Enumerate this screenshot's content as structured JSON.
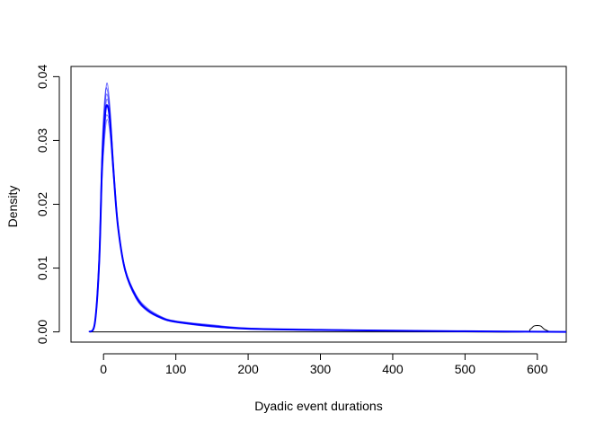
{
  "chart_data": {
    "type": "line",
    "title": "",
    "xlabel": "Dyadic event durations",
    "ylabel": "Density",
    "xlim": [
      -45,
      640
    ],
    "ylim": [
      -0.0016,
      0.0416
    ],
    "xticks": [
      0,
      100,
      200,
      300,
      400,
      500,
      600
    ],
    "yticks": [
      0.0,
      0.01,
      0.02,
      0.03,
      0.04
    ],
    "ytick_labels": [
      "0.00",
      "0.01",
      "0.02",
      "0.03",
      "0.04"
    ],
    "grid": false,
    "legend": "none",
    "colors": {
      "observed": "#000000",
      "simulated": "#0000ff",
      "axes": "#000000"
    },
    "series": [
      {
        "color": "#000000",
        "style": "thin",
        "x": [
          -20,
          -10,
          -5,
          0,
          3,
          8,
          15,
          25,
          40,
          60,
          80,
          100,
          150,
          200,
          300,
          400,
          500,
          580,
          590,
          595,
          600,
          605,
          610,
          620,
          640
        ],
        "y": [
          0.0,
          0.0,
          0.0,
          0.0,
          0.0,
          0.0,
          0.0,
          0.0,
          0.0,
          0.0,
          0.0,
          0.0,
          0.0,
          0.0,
          0.0,
          0.0,
          0.0,
          0.0,
          0.0004,
          0.0009,
          0.001,
          0.0009,
          0.0004,
          0.0,
          0.0
        ]
      },
      {
        "color": "#0000ff",
        "style": "thin",
        "x": [
          -20,
          -12,
          -6,
          -2,
          2,
          5,
          9,
          14,
          20,
          30,
          45,
          60,
          80,
          100,
          150,
          200,
          300,
          400,
          500,
          640
        ],
        "y": [
          0.0,
          0.0015,
          0.012,
          0.028,
          0.036,
          0.039,
          0.035,
          0.026,
          0.017,
          0.0098,
          0.0055,
          0.0035,
          0.0022,
          0.0016,
          0.0009,
          0.0005,
          0.0003,
          0.0002,
          0.0001,
          0.0
        ]
      },
      {
        "color": "#0000ff",
        "style": "thin",
        "x": [
          -20,
          -12,
          -6,
          -2,
          2,
          5,
          9,
          14,
          20,
          30,
          45,
          60,
          80,
          100,
          150,
          200,
          300,
          400,
          500,
          640
        ],
        "y": [
          0.0,
          0.0014,
          0.011,
          0.026,
          0.034,
          0.0365,
          0.0335,
          0.025,
          0.0165,
          0.0095,
          0.0053,
          0.0034,
          0.0021,
          0.0015,
          0.0009,
          0.0005,
          0.0003,
          0.0002,
          0.0001,
          0.0
        ]
      },
      {
        "color": "#0000ff",
        "style": "thin",
        "x": [
          -20,
          -12,
          -6,
          -2,
          2,
          5,
          9,
          14,
          20,
          30,
          45,
          60,
          80,
          100,
          150,
          200,
          300,
          400,
          500,
          640
        ],
        "y": [
          0.0,
          0.0013,
          0.0105,
          0.025,
          0.0325,
          0.034,
          0.032,
          0.0245,
          0.0165,
          0.0097,
          0.0056,
          0.0036,
          0.0023,
          0.0016,
          0.001,
          0.0006,
          0.0003,
          0.0002,
          0.0001,
          0.0
        ]
      },
      {
        "color": "#0000ff",
        "style": "thin",
        "x": [
          -20,
          -12,
          -6,
          -2,
          2,
          5,
          9,
          14,
          20,
          30,
          45,
          60,
          80,
          100,
          150,
          200,
          300,
          400,
          500,
          640
        ],
        "y": [
          0.0,
          0.0016,
          0.0125,
          0.029,
          0.037,
          0.038,
          0.0345,
          0.0255,
          0.0168,
          0.0096,
          0.0054,
          0.0035,
          0.0022,
          0.0016,
          0.0009,
          0.0005,
          0.0003,
          0.0002,
          0.0001,
          0.0
        ]
      },
      {
        "color": "#0000ff",
        "style": "thin",
        "x": [
          -20,
          -12,
          -6,
          -2,
          2,
          5,
          9,
          14,
          20,
          30,
          45,
          60,
          80,
          100,
          150,
          200,
          300,
          400,
          500,
          640
        ],
        "y": [
          0.0,
          0.0012,
          0.01,
          0.024,
          0.031,
          0.0333,
          0.031,
          0.024,
          0.0165,
          0.0099,
          0.0058,
          0.0038,
          0.0024,
          0.0017,
          0.0011,
          0.0006,
          0.0004,
          0.0002,
          0.0001,
          0.0
        ]
      },
      {
        "color": "#0000ff",
        "style": "thin",
        "x": [
          -20,
          -12,
          -6,
          -2,
          2,
          5,
          9,
          14,
          20,
          30,
          45,
          60,
          80,
          100,
          150,
          200,
          300,
          400,
          500,
          640
        ],
        "y": [
          0.0,
          0.0015,
          0.0118,
          0.0275,
          0.0355,
          0.0372,
          0.034,
          0.0252,
          0.0166,
          0.0094,
          0.0052,
          0.0033,
          0.0021,
          0.0015,
          0.0008,
          0.0005,
          0.0003,
          0.0002,
          0.0001,
          0.0
        ]
      },
      {
        "color": "#0000ff",
        "style": "thick",
        "x": [
          -20,
          -12,
          -6,
          -2,
          2,
          5,
          9,
          14,
          20,
          30,
          45,
          60,
          80,
          100,
          150,
          200,
          300,
          400,
          500,
          640
        ],
        "y": [
          0.0,
          0.0014,
          0.011,
          0.0262,
          0.0338,
          0.0355,
          0.033,
          0.0248,
          0.0165,
          0.0096,
          0.0055,
          0.0035,
          0.0022,
          0.0016,
          0.0009,
          0.0005,
          0.0003,
          0.0002,
          0.0001,
          0.0
        ]
      }
    ]
  }
}
